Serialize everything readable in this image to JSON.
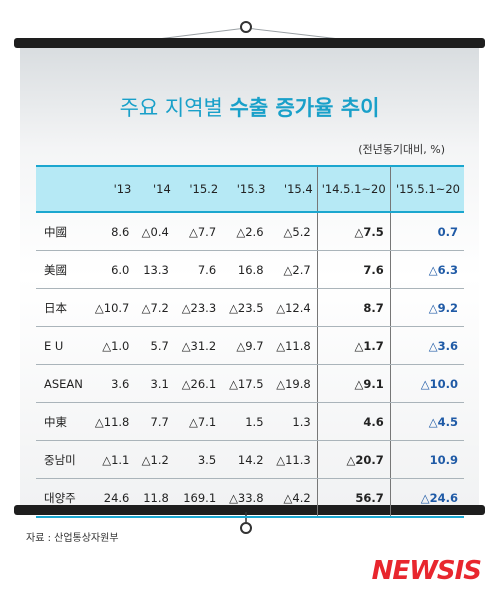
{
  "title_plain": "주요 지역별 ",
  "title_bold": "수출 증가율 추이",
  "unit": "(전년동기대비, %)",
  "columns": [
    "",
    "'13",
    "'14",
    "'15.2",
    "'15.3",
    "'15.4",
    "'14.5.1~20",
    "'15.5.1~20"
  ],
  "rows": [
    {
      "label": "中國",
      "values": [
        "8.6",
        "△0.4",
        "△7.7",
        "△2.6",
        "△5.2",
        "△7.5",
        "0.7"
      ]
    },
    {
      "label": "美國",
      "values": [
        "6.0",
        "13.3",
        "7.6",
        "16.8",
        "△2.7",
        "7.6",
        "△6.3"
      ]
    },
    {
      "label": "日本",
      "values": [
        "△10.7",
        "△7.2",
        "△23.3",
        "△23.5",
        "△12.4",
        "8.7",
        "△9.2"
      ]
    },
    {
      "label": "E U",
      "values": [
        "△1.0",
        "5.7",
        "△31.2",
        "△9.7",
        "△11.8",
        "△1.7",
        "△3.6"
      ]
    },
    {
      "label": "ASEAN",
      "values": [
        "3.6",
        "3.1",
        "△26.1",
        "△17.5",
        "△19.8",
        "△9.1",
        "△10.0"
      ]
    },
    {
      "label": "中東",
      "values": [
        "△11.8",
        "7.7",
        "△7.1",
        "1.5",
        "1.3",
        "4.6",
        "△4.5"
      ]
    },
    {
      "label": "중남미",
      "values": [
        "△1.1",
        "△1.2",
        "3.5",
        "14.2",
        "△11.3",
        "△20.7",
        "10.9"
      ]
    },
    {
      "label": "대양주",
      "values": [
        "24.6",
        "11.8",
        "169.1",
        "△33.8",
        "△4.2",
        "56.7",
        "△24.6"
      ]
    }
  ],
  "source": "자료 : 산업통상자원부",
  "logo": "NEWSIS"
}
